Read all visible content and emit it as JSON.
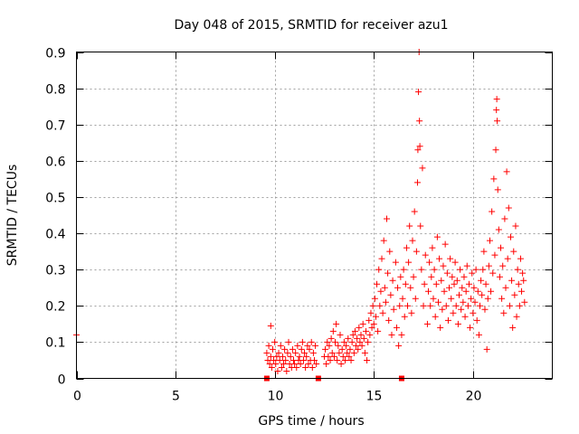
{
  "chart_data": {
    "type": "scatter",
    "title": "Day 048 of 2015, SRMTID for receiver azu1",
    "xlabel": "GPS time / hours",
    "ylabel": "SRMTID / TECUs",
    "xlim": [
      0,
      24
    ],
    "ylim": [
      0,
      0.9
    ],
    "xticks": [
      0,
      5,
      10,
      15,
      20
    ],
    "xtick_labels": [
      "0",
      "5",
      "10",
      "15",
      "20"
    ],
    "yticks": [
      0,
      0.1,
      0.2,
      0.3,
      0.4,
      0.5,
      0.6,
      0.7,
      0.8,
      0.9
    ],
    "ytick_labels": [
      "0",
      "0.1",
      "0.2",
      "0.3",
      "0.4",
      "0.5",
      "0.6",
      "0.7",
      "0.8",
      "0.9"
    ],
    "grid": true,
    "marker_color": "#ff0000",
    "series": [
      {
        "name": "SRMTID",
        "marker": "plus",
        "points": [
          [
            0.0,
            0.12
          ],
          [
            9.6,
            0.07
          ],
          [
            9.65,
            0.05
          ],
          [
            9.7,
            0.09
          ],
          [
            9.75,
            0.04
          ],
          [
            9.8,
            0.06
          ],
          [
            9.8,
            0.145
          ],
          [
            9.85,
            0.03
          ],
          [
            9.9,
            0.08
          ],
          [
            9.95,
            0.05
          ],
          [
            10.0,
            0.1
          ],
          [
            10.05,
            0.04
          ],
          [
            10.1,
            0.06
          ],
          [
            10.15,
            0.02
          ],
          [
            10.2,
            0.07
          ],
          [
            10.25,
            0.05
          ],
          [
            10.3,
            0.09
          ],
          [
            10.35,
            0.03
          ],
          [
            10.4,
            0.06
          ],
          [
            10.45,
            0.04
          ],
          [
            10.5,
            0.08
          ],
          [
            10.55,
            0.05
          ],
          [
            10.6,
            0.02
          ],
          [
            10.65,
            0.07
          ],
          [
            10.7,
            0.1
          ],
          [
            10.75,
            0.04
          ],
          [
            10.8,
            0.06
          ],
          [
            10.85,
            0.03
          ],
          [
            10.9,
            0.08
          ],
          [
            10.95,
            0.05
          ],
          [
            11.0,
            0.04
          ],
          [
            11.05,
            0.07
          ],
          [
            11.1,
            0.03
          ],
          [
            11.15,
            0.09
          ],
          [
            11.2,
            0.05
          ],
          [
            11.25,
            0.06
          ],
          [
            11.3,
            0.04
          ],
          [
            11.35,
            0.08
          ],
          [
            11.4,
            0.1
          ],
          [
            11.45,
            0.05
          ],
          [
            11.5,
            0.07
          ],
          [
            11.55,
            0.03
          ],
          [
            11.6,
            0.06
          ],
          [
            11.65,
            0.09
          ],
          [
            11.7,
            0.04
          ],
          [
            11.75,
            0.08
          ],
          [
            11.8,
            0.05
          ],
          [
            11.85,
            0.1
          ],
          [
            11.9,
            0.03
          ],
          [
            11.95,
            0.07
          ],
          [
            12.0,
            0.05
          ],
          [
            12.05,
            0.09
          ],
          [
            12.1,
            0.04
          ],
          [
            12.5,
            0.06
          ],
          [
            12.55,
            0.08
          ],
          [
            12.6,
            0.04
          ],
          [
            12.65,
            0.1
          ],
          [
            12.7,
            0.06
          ],
          [
            12.75,
            0.09
          ],
          [
            12.8,
            0.05
          ],
          [
            12.85,
            0.11
          ],
          [
            12.9,
            0.07
          ],
          [
            12.95,
            0.13
          ],
          [
            13.0,
            0.06
          ],
          [
            13.05,
            0.1
          ],
          [
            13.1,
            0.15
          ],
          [
            13.15,
            0.05
          ],
          [
            13.2,
            0.09
          ],
          [
            13.25,
            0.07
          ],
          [
            13.3,
            0.12
          ],
          [
            13.35,
            0.04
          ],
          [
            13.4,
            0.08
          ],
          [
            13.45,
            0.06
          ],
          [
            13.5,
            0.1
          ],
          [
            13.55,
            0.05
          ],
          [
            13.6,
            0.09
          ],
          [
            13.65,
            0.07
          ],
          [
            13.7,
            0.11
          ],
          [
            13.75,
            0.06
          ],
          [
            13.8,
            0.08
          ],
          [
            13.85,
            0.05
          ],
          [
            13.9,
            0.1
          ],
          [
            13.95,
            0.12
          ],
          [
            14.0,
            0.07
          ],
          [
            14.05,
            0.13
          ],
          [
            14.1,
            0.09
          ],
          [
            14.15,
            0.11
          ],
          [
            14.2,
            0.08
          ],
          [
            14.25,
            0.14
          ],
          [
            14.3,
            0.1
          ],
          [
            14.35,
            0.12
          ],
          [
            14.4,
            0.09
          ],
          [
            14.45,
            0.15
          ],
          [
            14.5,
            0.11
          ],
          [
            14.55,
            0.07
          ],
          [
            14.6,
            0.13
          ],
          [
            14.65,
            0.05
          ],
          [
            14.7,
            0.1
          ],
          [
            14.75,
            0.16
          ],
          [
            14.8,
            0.12
          ],
          [
            14.85,
            0.18
          ],
          [
            14.9,
            0.14
          ],
          [
            14.95,
            0.2
          ],
          [
            15.0,
            0.15
          ],
          [
            15.05,
            0.22
          ],
          [
            15.1,
            0.17
          ],
          [
            15.15,
            0.26
          ],
          [
            15.2,
            0.13
          ],
          [
            15.25,
            0.3
          ],
          [
            15.3,
            0.2
          ],
          [
            15.35,
            0.24
          ],
          [
            15.4,
            0.33
          ],
          [
            15.45,
            0.18
          ],
          [
            15.5,
            0.38
          ],
          [
            15.55,
            0.25
          ],
          [
            15.6,
            0.21
          ],
          [
            15.65,
            0.44
          ],
          [
            15.7,
            0.29
          ],
          [
            15.75,
            0.16
          ],
          [
            15.8,
            0.35
          ],
          [
            15.85,
            0.23
          ],
          [
            15.9,
            0.12
          ],
          [
            15.95,
            0.27
          ],
          [
            16.0,
            0.19
          ],
          [
            16.1,
            0.32
          ],
          [
            16.15,
            0.14
          ],
          [
            16.2,
            0.25
          ],
          [
            16.25,
            0.09
          ],
          [
            16.3,
            0.2
          ],
          [
            16.35,
            0.28
          ],
          [
            16.4,
            0.12
          ],
          [
            16.45,
            0.22
          ],
          [
            16.5,
            0.3
          ],
          [
            16.55,
            0.17
          ],
          [
            16.6,
            0.26
          ],
          [
            16.65,
            0.36
          ],
          [
            16.7,
            0.2
          ],
          [
            16.75,
            0.32
          ],
          [
            16.8,
            0.42
          ],
          [
            16.85,
            0.25
          ],
          [
            16.9,
            0.18
          ],
          [
            16.95,
            0.38
          ],
          [
            17.0,
            0.28
          ],
          [
            17.05,
            0.46
          ],
          [
            17.1,
            0.22
          ],
          [
            17.15,
            0.35
          ],
          [
            17.2,
            0.54
          ],
          [
            17.22,
            0.63
          ],
          [
            17.25,
            0.79
          ],
          [
            17.28,
            0.9
          ],
          [
            17.3,
            0.71
          ],
          [
            17.32,
            0.64
          ],
          [
            17.35,
            0.42
          ],
          [
            17.4,
            0.3
          ],
          [
            17.45,
            0.58
          ],
          [
            17.5,
            0.2
          ],
          [
            17.55,
            0.26
          ],
          [
            17.6,
            0.34
          ],
          [
            17.7,
            0.15
          ],
          [
            17.75,
            0.24
          ],
          [
            17.8,
            0.32
          ],
          [
            17.85,
            0.2
          ],
          [
            17.9,
            0.28
          ],
          [
            17.95,
            0.36
          ],
          [
            18.0,
            0.22
          ],
          [
            18.05,
            0.3
          ],
          [
            18.1,
            0.17
          ],
          [
            18.15,
            0.26
          ],
          [
            18.2,
            0.39
          ],
          [
            18.25,
            0.21
          ],
          [
            18.3,
            0.33
          ],
          [
            18.35,
            0.14
          ],
          [
            18.4,
            0.27
          ],
          [
            18.45,
            0.19
          ],
          [
            18.5,
            0.31
          ],
          [
            18.55,
            0.24
          ],
          [
            18.6,
            0.37
          ],
          [
            18.65,
            0.2
          ],
          [
            18.7,
            0.29
          ],
          [
            18.75,
            0.16
          ],
          [
            18.8,
            0.25
          ],
          [
            18.85,
            0.33
          ],
          [
            18.9,
            0.22
          ],
          [
            18.95,
            0.28
          ],
          [
            19.0,
            0.18
          ],
          [
            19.05,
            0.26
          ],
          [
            19.1,
            0.32
          ],
          [
            19.15,
            0.2
          ],
          [
            19.2,
            0.27
          ],
          [
            19.25,
            0.15
          ],
          [
            19.3,
            0.23
          ],
          [
            19.35,
            0.3
          ],
          [
            19.4,
            0.19
          ],
          [
            19.45,
            0.25
          ],
          [
            19.5,
            0.21
          ],
          [
            19.55,
            0.28
          ],
          [
            19.6,
            0.17
          ],
          [
            19.65,
            0.24
          ],
          [
            19.7,
            0.31
          ],
          [
            19.75,
            0.2
          ],
          [
            19.8,
            0.26
          ],
          [
            19.85,
            0.14
          ],
          [
            19.9,
            0.22
          ],
          [
            19.95,
            0.29
          ],
          [
            20.0,
            0.18
          ],
          [
            20.05,
            0.25
          ],
          [
            20.1,
            0.21
          ],
          [
            20.15,
            0.3
          ],
          [
            20.2,
            0.16
          ],
          [
            20.25,
            0.24
          ],
          [
            20.3,
            0.12
          ],
          [
            20.35,
            0.2
          ],
          [
            20.4,
            0.27
          ],
          [
            20.45,
            0.23
          ],
          [
            20.5,
            0.3
          ],
          [
            20.55,
            0.35
          ],
          [
            20.6,
            0.19
          ],
          [
            20.65,
            0.26
          ],
          [
            20.7,
            0.08
          ],
          [
            20.75,
            0.22
          ],
          [
            20.8,
            0.31
          ],
          [
            20.85,
            0.38
          ],
          [
            20.9,
            0.24
          ],
          [
            20.95,
            0.46
          ],
          [
            21.0,
            0.29
          ],
          [
            21.05,
            0.55
          ],
          [
            21.1,
            0.34
          ],
          [
            21.15,
            0.63
          ],
          [
            21.18,
            0.74
          ],
          [
            21.2,
            0.77
          ],
          [
            21.22,
            0.71
          ],
          [
            21.25,
            0.52
          ],
          [
            21.3,
            0.41
          ],
          [
            21.35,
            0.28
          ],
          [
            21.4,
            0.36
          ],
          [
            21.45,
            0.22
          ],
          [
            21.5,
            0.31
          ],
          [
            21.55,
            0.18
          ],
          [
            21.6,
            0.44
          ],
          [
            21.65,
            0.25
          ],
          [
            21.7,
            0.57
          ],
          [
            21.75,
            0.33
          ],
          [
            21.8,
            0.47
          ],
          [
            21.85,
            0.2
          ],
          [
            21.9,
            0.39
          ],
          [
            21.95,
            0.27
          ],
          [
            22.0,
            0.14
          ],
          [
            22.05,
            0.35
          ],
          [
            22.1,
            0.23
          ],
          [
            22.15,
            0.42
          ],
          [
            22.2,
            0.17
          ],
          [
            22.25,
            0.3
          ],
          [
            22.3,
            0.26
          ],
          [
            22.35,
            0.2
          ],
          [
            22.4,
            0.33
          ],
          [
            22.45,
            0.24
          ],
          [
            22.5,
            0.29
          ],
          [
            22.55,
            0.27
          ],
          [
            22.6,
            0.21
          ]
        ]
      },
      {
        "name": "zero markers",
        "marker": "square",
        "points": [
          [
            9.6,
            0
          ],
          [
            12.2,
            0
          ],
          [
            16.4,
            0
          ]
        ]
      }
    ]
  }
}
